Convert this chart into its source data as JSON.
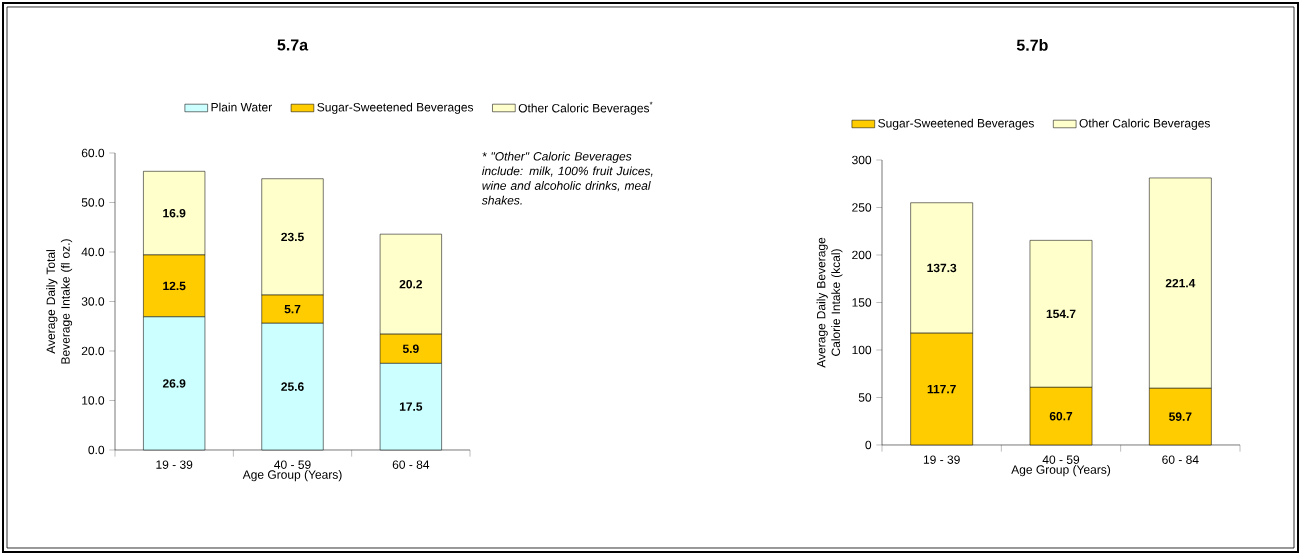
{
  "chart_data": [
    {
      "type": "bar",
      "title": "5.7a",
      "xlabel": "Age Group (Years)",
      "ylabel": "Average Daily Total Beverage Intake (fl oz.)",
      "categories": [
        "19 - 39",
        "40 - 59",
        "60 - 84"
      ],
      "stacked": true,
      "legend": "top",
      "data_labels": true,
      "ylim": [
        0,
        60
      ],
      "yticks": [
        {
          "value": 0,
          "label": "0.0"
        },
        {
          "value": 10,
          "label": "10.0"
        },
        {
          "value": 20,
          "label": "20.0"
        },
        {
          "value": 30,
          "label": "30.0"
        },
        {
          "value": 40,
          "label": "40.0"
        },
        {
          "value": 50,
          "label": "50.0"
        },
        {
          "value": 60,
          "label": "60.0"
        }
      ],
      "series": [
        {
          "name": "Plain Water",
          "color": "#ccffff",
          "values": [
            26.9,
            25.6,
            17.5
          ]
        },
        {
          "name": "Sugar-Sweetened Beverages",
          "color": "#ffcc00",
          "values": [
            12.5,
            5.7,
            5.9
          ]
        },
        {
          "name": "Other Caloric Beverages$^{*}$",
          "color": "#ffffcc",
          "values": [
            16.9,
            23.5,
            20.2
          ]
        }
      ],
      "annotations": [
        "* \"Other\" Caloric Beverages include: milk, 100% fruit Juices, wine and alcoholic drinks, meal shakes."
      ]
    },
    {
      "type": "bar",
      "title": "5.7b",
      "xlabel": "Age Group (Years)",
      "ylabel": "Average Daily Beverage Calorie Intake (kcal)",
      "categories": [
        "19 - 39",
        "40 - 59",
        "60 - 84"
      ],
      "stacked": true,
      "legend": "top",
      "data_labels": true,
      "ylim": [
        0,
        300
      ],
      "yticks": [
        0,
        50,
        100,
        150,
        200,
        250,
        300
      ],
      "series": [
        {
          "name": "Sugar-Sweetened Beverages",
          "color": "#ffcc00",
          "values": [
            117.7,
            60.7,
            59.7
          ]
        },
        {
          "name": "Other Caloric Beverages",
          "color": "#ffffcc",
          "values": [
            137.3,
            154.7,
            221.4
          ]
        }
      ]
    }
  ]
}
